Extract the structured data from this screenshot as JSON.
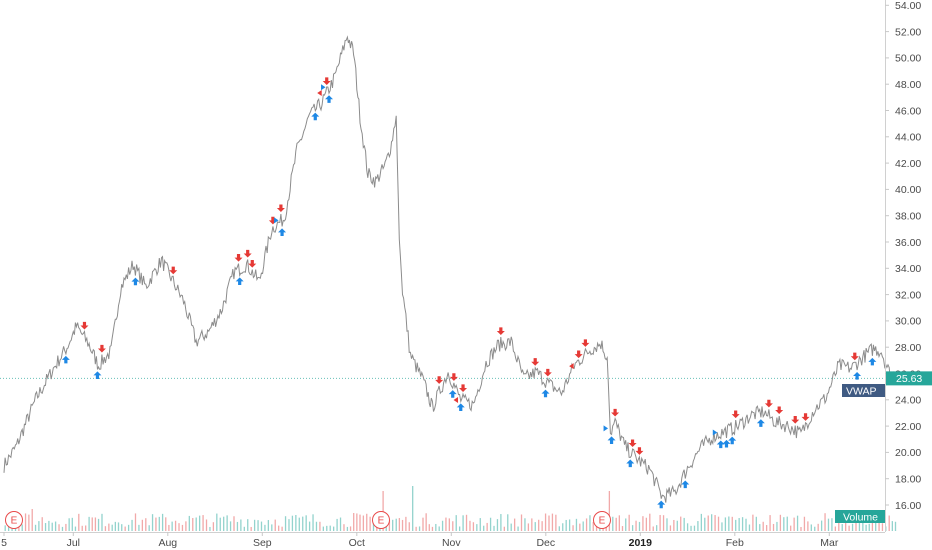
{
  "chart_data": {
    "type": "line",
    "title": "",
    "xlabel": "",
    "ylabel": "",
    "ylim": [
      14.8,
      54.6
    ],
    "yticks": [
      "16.00",
      "18.00",
      "20.00",
      "22.00",
      "24.00",
      "26.00",
      "28.00",
      "30.00",
      "32.00",
      "34.00",
      "36.00",
      "38.00",
      "40.00",
      "42.00",
      "44.00",
      "46.00",
      "48.00",
      "50.00",
      "52.00",
      "54.00"
    ],
    "xticks": [
      {
        "label": "5",
        "bold": false
      },
      {
        "label": "Jul",
        "bold": false
      },
      {
        "label": "Aug",
        "bold": false
      },
      {
        "label": "Sep",
        "bold": false
      },
      {
        "label": "Oct",
        "bold": false
      },
      {
        "label": "Nov",
        "bold": false
      },
      {
        "label": "Dec",
        "bold": false
      },
      {
        "label": "2019",
        "bold": true
      },
      {
        "label": "Feb",
        "bold": false
      },
      {
        "label": "Mar",
        "bold": false
      }
    ],
    "price_keypoints": [
      [
        0,
        19.0
      ],
      [
        0.4,
        20.5
      ],
      [
        1.0,
        24.0
      ],
      [
        1.6,
        26.5
      ],
      [
        2.0,
        28.0
      ],
      [
        2.3,
        29.6
      ],
      [
        2.7,
        28.2
      ],
      [
        3.0,
        26.6
      ],
      [
        3.4,
        27.7
      ],
      [
        3.7,
        32.5
      ],
      [
        4.1,
        34.3
      ],
      [
        4.5,
        32.6
      ],
      [
        5.0,
        34.6
      ],
      [
        5.3,
        33.3
      ],
      [
        5.7,
        31.5
      ],
      [
        6.1,
        28.4
      ],
      [
        6.5,
        29.2
      ],
      [
        6.9,
        30.8
      ],
      [
        7.3,
        33.7
      ],
      [
        7.7,
        34.3
      ],
      [
        8.1,
        33.0
      ],
      [
        8.5,
        37.0
      ],
      [
        8.9,
        37.8
      ],
      [
        9.3,
        43.0
      ],
      [
        9.7,
        45.6
      ],
      [
        10.1,
        46.6
      ],
      [
        10.5,
        48.5
      ],
      [
        10.9,
        51.7
      ],
      [
        11.1,
        50.4
      ],
      [
        11.3,
        45.6
      ],
      [
        11.55,
        41.2
      ],
      [
        11.8,
        40.6
      ],
      [
        12.1,
        41.8
      ],
      [
        12.3,
        43.5
      ],
      [
        12.45,
        45.6
      ],
      [
        12.55,
        36.2
      ],
      [
        12.65,
        32.3
      ],
      [
        12.9,
        27.4
      ],
      [
        13.3,
        25.5
      ],
      [
        13.6,
        23.4
      ],
      [
        14.1,
        26.1
      ],
      [
        14.5,
        24.0
      ],
      [
        14.9,
        23.6
      ],
      [
        15.3,
        26.8
      ],
      [
        15.7,
        28.2
      ],
      [
        16.1,
        28.4
      ],
      [
        16.5,
        25.6
      ],
      [
        16.9,
        26.1
      ],
      [
        17.3,
        25.2
      ],
      [
        17.7,
        24.5
      ],
      [
        18.1,
        26.6
      ],
      [
        18.6,
        27.8
      ],
      [
        18.95,
        28.3
      ],
      [
        19.15,
        27.2
      ],
      [
        19.25,
        21.5
      ],
      [
        19.4,
        22.3
      ],
      [
        19.7,
        20.5
      ],
      [
        20.1,
        19.5
      ],
      [
        20.5,
        18.7
      ],
      [
        20.9,
        16.6
      ],
      [
        21.3,
        17.0
      ],
      [
        21.7,
        18.8
      ],
      [
        22.1,
        20.3
      ],
      [
        22.5,
        21.2
      ],
      [
        22.9,
        21.6
      ],
      [
        23.3,
        22.0
      ],
      [
        23.7,
        22.8
      ],
      [
        24.1,
        23.1
      ],
      [
        24.5,
        22.3
      ],
      [
        24.9,
        22.0
      ],
      [
        25.3,
        21.4
      ],
      [
        25.7,
        23.2
      ],
      [
        26.1,
        24.2
      ],
      [
        26.5,
        26.6
      ],
      [
        26.9,
        26.4
      ],
      [
        27.3,
        27.3
      ],
      [
        27.6,
        27.9
      ],
      [
        27.85,
        27.7
      ],
      [
        28.1,
        26.1
      ],
      [
        28.3,
        25.9
      ]
    ],
    "last_price": "25.63",
    "vwap_label": "VWAP",
    "volume_label": "Volume",
    "earnings_marker_label": "E",
    "earnings_marker_count": 3
  },
  "colors": {
    "line": "#8c8c8c",
    "buy": "#1e88e5",
    "sell": "#e53935",
    "price_badge": "#26a69a",
    "vwap_badge": "#3f5a82",
    "volume_up": "#80cbc4",
    "volume_down": "#ef9a9a"
  }
}
